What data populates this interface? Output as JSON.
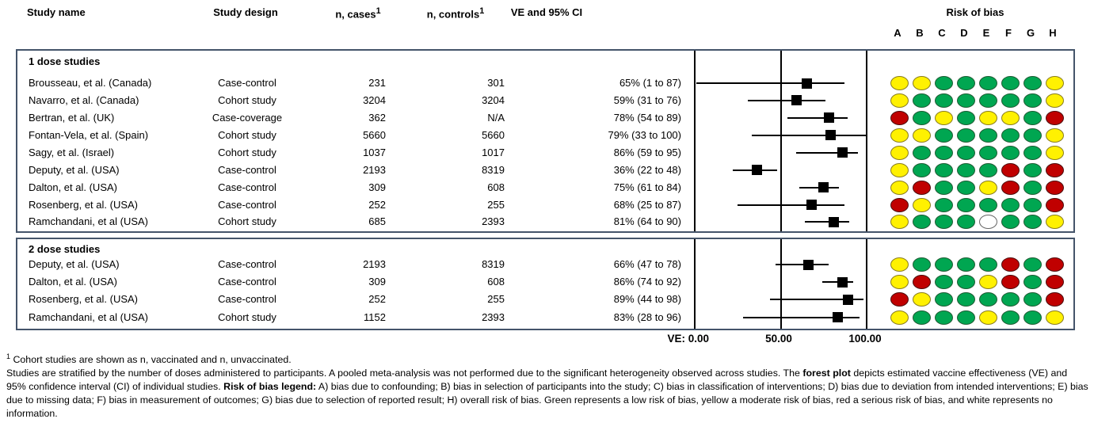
{
  "header": {
    "study_name": "Study name",
    "study_design": "Study design",
    "n_cases": "n, cases",
    "n_cases_sup": "1",
    "n_controls": "n, controls",
    "n_controls_sup": "1",
    "ve_ci": "VE and 95% CI",
    "risk_of_bias": "Risk of bias",
    "bias_columns": [
      "A",
      "B",
      "C",
      "D",
      "E",
      "F",
      "G",
      "H"
    ]
  },
  "axis": {
    "label_zero": "VE: 0.00",
    "label_fifty": "50.00",
    "label_hundred": "100.00"
  },
  "colors": {
    "box_border": "#44546A",
    "marker": "#000000",
    "bias": {
      "G": {
        "fill": "#00A651",
        "border": "#1d5c33",
        "meaning": "low risk of bias"
      },
      "Y": {
        "fill": "#FFF101",
        "border": "#8a7d1d",
        "meaning": "moderate risk of bias"
      },
      "R": {
        "fill": "#C00000",
        "border": "#4d0a0a",
        "meaning": "serious risk of bias"
      },
      "W": {
        "fill": "#FFFFFF",
        "border": "#666666",
        "meaning": "no information"
      }
    }
  },
  "sections": [
    {
      "title": "1 dose studies",
      "rows": [
        {
          "name": "Brousseau, et al. (Canada)",
          "design": "Case-control",
          "cases": "231",
          "controls": "301",
          "ve_text": "65% (1 to 87)",
          "ve": 65,
          "lo": 1,
          "hi": 87,
          "bias": [
            "Y",
            "Y",
            "G",
            "G",
            "G",
            "G",
            "G",
            "Y"
          ]
        },
        {
          "name": "Navarro, et al. (Canada)",
          "design": "Cohort study",
          "cases": "3204",
          "controls": "3204",
          "ve_text": "59% (31 to 76)",
          "ve": 59,
          "lo": 31,
          "hi": 76,
          "bias": [
            "Y",
            "G",
            "G",
            "G",
            "G",
            "G",
            "G",
            "Y"
          ]
        },
        {
          "name": "Bertran, et al. (UK)",
          "design": "Case-coverage",
          "cases": "362",
          "controls": "N/A",
          "ve_text": "78% (54 to 89)",
          "ve": 78,
          "lo": 54,
          "hi": 89,
          "bias": [
            "R",
            "G",
            "Y",
            "G",
            "Y",
            "Y",
            "G",
            "R"
          ]
        },
        {
          "name": "Fontan-Vela, et al. (Spain)",
          "design": "Cohort study",
          "cases": "5660",
          "controls": "5660",
          "ve_text": "79% (33 to 100)",
          "ve": 79,
          "lo": 33,
          "hi": 100,
          "bias": [
            "Y",
            "Y",
            "G",
            "G",
            "G",
            "G",
            "G",
            "Y"
          ]
        },
        {
          "name": "Sagy, et al. (Israel)",
          "design": "Cohort study",
          "cases": "1037",
          "controls": "1017",
          "ve_text": "86% (59 to 95)",
          "ve": 86,
          "lo": 59,
          "hi": 95,
          "bias": [
            "Y",
            "G",
            "G",
            "G",
            "G",
            "G",
            "G",
            "Y"
          ]
        },
        {
          "name": "Deputy, et al. (USA)",
          "design": "Case-control",
          "cases": "2193",
          "controls": "8319",
          "ve_text": "36% (22 to 48)",
          "ve": 36,
          "lo": 22,
          "hi": 48,
          "bias": [
            "Y",
            "G",
            "G",
            "G",
            "G",
            "R",
            "G",
            "R"
          ]
        },
        {
          "name": "Dalton, et al. (USA)",
          "design": "Case-control",
          "cases": "309",
          "controls": "608",
          "ve_text": "75% (61 to 84)",
          "ve": 75,
          "lo": 61,
          "hi": 84,
          "bias": [
            "Y",
            "R",
            "G",
            "G",
            "Y",
            "R",
            "G",
            "R"
          ]
        },
        {
          "name": "Rosenberg, et al. (USA)",
          "design": "Case-control",
          "cases": "252",
          "controls": "255",
          "ve_text": "68% (25 to 87)",
          "ve": 68,
          "lo": 25,
          "hi": 87,
          "bias": [
            "R",
            "Y",
            "G",
            "G",
            "G",
            "G",
            "G",
            "R"
          ]
        },
        {
          "name": "Ramchandani, et al (USA)",
          "design": "Cohort study",
          "cases": "685",
          "controls": "2393",
          "ve_text": "81% (64 to 90)",
          "ve": 81,
          "lo": 64,
          "hi": 90,
          "bias": [
            "Y",
            "G",
            "G",
            "G",
            "W",
            "G",
            "G",
            "Y"
          ]
        }
      ]
    },
    {
      "title": "2 dose studies",
      "rows": [
        {
          "name": "Deputy, et al. (USA)",
          "design": "Case-control",
          "cases": "2193",
          "controls": "8319",
          "ve_text": "66% (47 to 78)",
          "ve": 66,
          "lo": 47,
          "hi": 78,
          "bias": [
            "Y",
            "G",
            "G",
            "G",
            "G",
            "R",
            "G",
            "R"
          ]
        },
        {
          "name": "Dalton, et al. (USA)",
          "design": "Case-control",
          "cases": "309",
          "controls": "608",
          "ve_text": "86% (74 to 92)",
          "ve": 86,
          "lo": 74,
          "hi": 92,
          "bias": [
            "Y",
            "R",
            "G",
            "G",
            "Y",
            "R",
            "G",
            "R"
          ]
        },
        {
          "name": "Rosenberg, et al. (USA)",
          "design": "Case-control",
          "cases": "252",
          "controls": "255",
          "ve_text": "89% (44 to 98)",
          "ve": 89,
          "lo": 44,
          "hi": 98,
          "bias": [
            "R",
            "Y",
            "G",
            "G",
            "G",
            "G",
            "G",
            "R"
          ]
        },
        {
          "name": "Ramchandani, et al (USA)",
          "design": "Cohort study",
          "cases": "1152",
          "controls": "2393",
          "ve_text": "83% (28 to 96)",
          "ve": 83,
          "lo": 28,
          "hi": 96,
          "bias": [
            "Y",
            "G",
            "G",
            "G",
            "Y",
            "G",
            "G",
            "Y"
          ]
        }
      ]
    }
  ],
  "chart_data": {
    "type": "scatter",
    "subtype": "forest_plot",
    "title": "VE and 95% CI",
    "xlabel": "VE",
    "xlim": [
      0,
      100
    ],
    "x_ticks": [
      0,
      50,
      100
    ],
    "x_tick_labels": [
      "VE: 0.00",
      "50.00",
      "100.00"
    ],
    "grid": false,
    "series": [
      {
        "name": "1 dose studies",
        "points": [
          {
            "study": "Brousseau, et al. (Canada)",
            "ve": 65,
            "ci_low": 1,
            "ci_high": 87
          },
          {
            "study": "Navarro, et al. (Canada)",
            "ve": 59,
            "ci_low": 31,
            "ci_high": 76
          },
          {
            "study": "Bertran, et al. (UK)",
            "ve": 78,
            "ci_low": 54,
            "ci_high": 89
          },
          {
            "study": "Fontan-Vela, et al. (Spain)",
            "ve": 79,
            "ci_low": 33,
            "ci_high": 100
          },
          {
            "study": "Sagy, et al. (Israel)",
            "ve": 86,
            "ci_low": 59,
            "ci_high": 95
          },
          {
            "study": "Deputy, et al. (USA)",
            "ve": 36,
            "ci_low": 22,
            "ci_high": 48
          },
          {
            "study": "Dalton, et al. (USA)",
            "ve": 75,
            "ci_low": 61,
            "ci_high": 84
          },
          {
            "study": "Rosenberg, et al. (USA)",
            "ve": 68,
            "ci_low": 25,
            "ci_high": 87
          },
          {
            "study": "Ramchandani, et al (USA)",
            "ve": 81,
            "ci_low": 64,
            "ci_high": 90
          }
        ]
      },
      {
        "name": "2 dose studies",
        "points": [
          {
            "study": "Deputy, et al. (USA)",
            "ve": 66,
            "ci_low": 47,
            "ci_high": 78
          },
          {
            "study": "Dalton, et al. (USA)",
            "ve": 86,
            "ci_low": 74,
            "ci_high": 92
          },
          {
            "study": "Rosenberg, et al. (USA)",
            "ve": 89,
            "ci_low": 44,
            "ci_high": 98
          },
          {
            "study": "Ramchandani, et al (USA)",
            "ve": 83,
            "ci_low": 28,
            "ci_high": 96
          }
        ]
      }
    ]
  },
  "footnote": {
    "sup": "1",
    "line1": " Cohort studies are shown as n, vaccinated and n, unvaccinated.",
    "para_segments": [
      {
        "text": "Studies are stratified by the number of doses administered to participants. A pooled meta-analysis was not performed due to the significant heterogeneity observed across studies. The ",
        "bold": false
      },
      {
        "text": "forest plot",
        "bold": true
      },
      {
        "text": " depicts estimated vaccine effectiveness (VE) and 95% confidence interval (CI) of individual studies. ",
        "bold": false
      },
      {
        "text": "Risk of bias legend:",
        "bold": true
      },
      {
        "text": " A) bias due to confounding; B) bias in selection of participants into the study; C) bias in classification of interventions; D) bias due to deviation from intended interventions; E) bias due to missing data; F) bias in measurement of outcomes; G) bias due to selection of reported result; H) overall risk of bias. Green represents a low risk of bias, yellow a moderate risk of bias, red a serious risk of bias, and white represents no information.",
        "bold": false
      }
    ]
  }
}
